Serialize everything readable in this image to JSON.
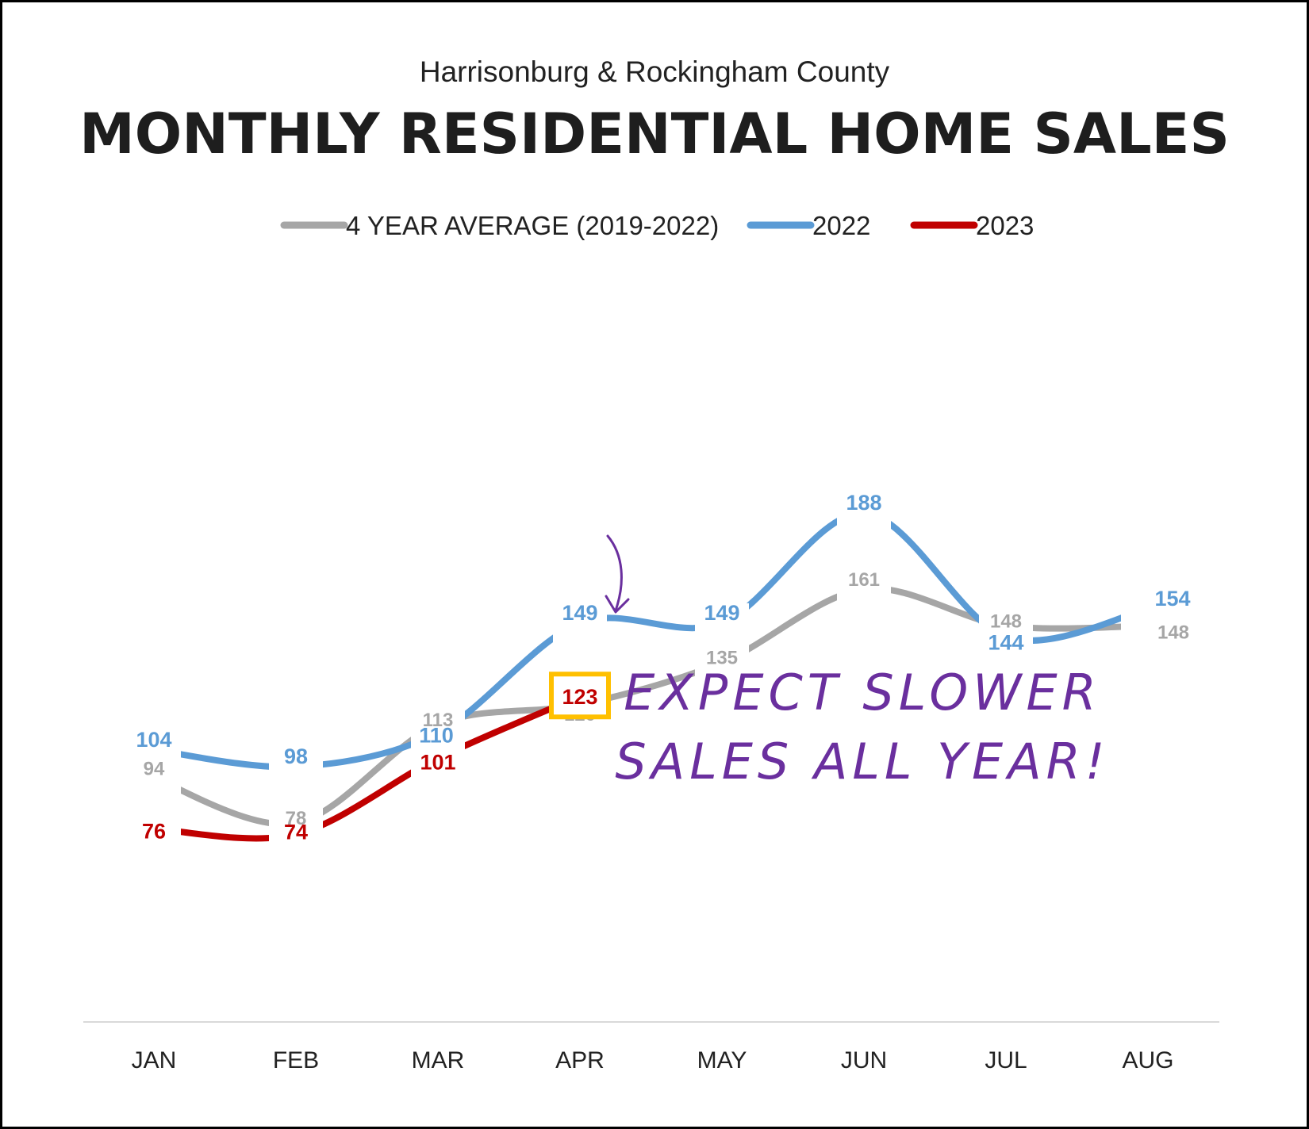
{
  "chart_data": {
    "type": "line",
    "subtitle": "Harrisonburg & Rockingham County",
    "title": "MONTHLY RESIDENTIAL HOME SALES",
    "categories": [
      "JAN",
      "FEB",
      "MAR",
      "APR",
      "MAY",
      "JUN",
      "JUL",
      "AUG"
    ],
    "series": [
      {
        "name": "4 YEAR AVERAGE (2019-2022)",
        "color": "#a6a6a6",
        "label_color": "#a6a6a6",
        "values": [
          94,
          78,
          113,
          120,
          135,
          161,
          148,
          148
        ]
      },
      {
        "name": "2022",
        "color": "#5b9bd5",
        "label_color": "#5b9bd5",
        "values": [
          104,
          98,
          110,
          149,
          149,
          188,
          144,
          154
        ]
      },
      {
        "name": "2023",
        "color": "#c00000",
        "label_color": "#c00000",
        "values": [
          76,
          74,
          101,
          123,
          null,
          null,
          null,
          null
        ]
      }
    ],
    "highlight": {
      "series": "2023",
      "category": "APR",
      "value": 123,
      "box_color": "#ffc000"
    },
    "annotation": {
      "lines": [
        "EXPECT SLOWER",
        "SALES ALL YEAR!"
      ],
      "color": "#6a2f9e"
    },
    "legend_position": "top",
    "grid": false,
    "y_axis_visible": false
  }
}
